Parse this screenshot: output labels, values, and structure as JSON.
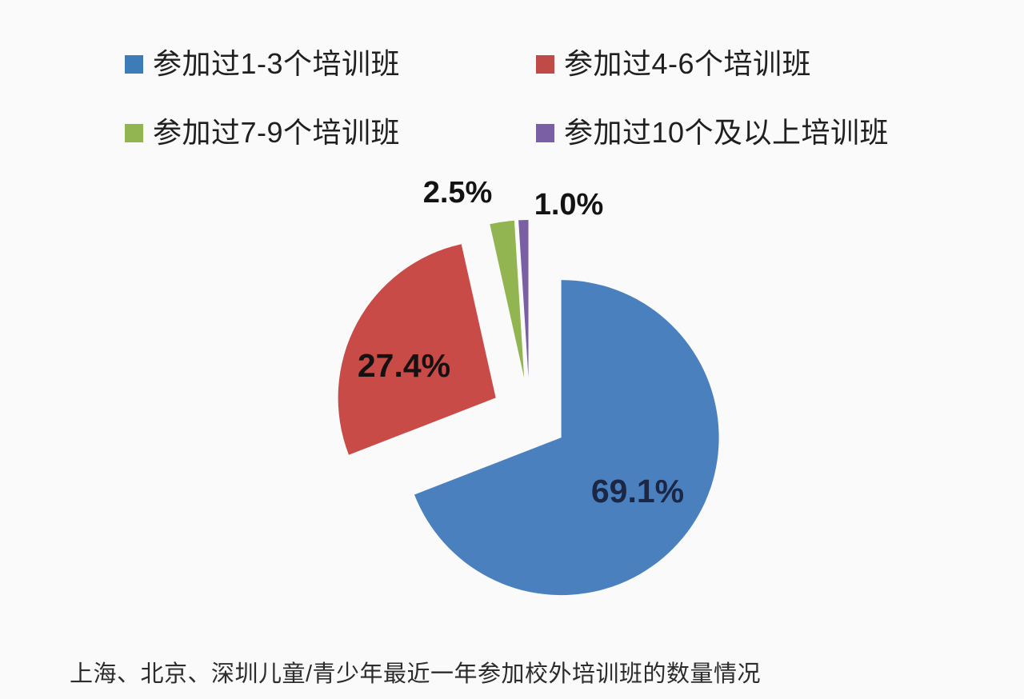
{
  "page": {
    "background_color": "#fafafb"
  },
  "legend": {
    "position": "top",
    "items": [
      {
        "label": "参加过1-3个培训班",
        "color": "#3e7cb8"
      },
      {
        "label": "参加过4-6个培训班",
        "color": "#c04a47"
      },
      {
        "label": "参加过7-9个培训班",
        "color": "#92b551"
      },
      {
        "label": "参加过10个及以上培训班",
        "color": "#7a5fa4"
      }
    ]
  },
  "caption": "上海、北京、深圳儿童/青少年最近一年参加校外培训班的数量情况",
  "chart_data": {
    "type": "pie",
    "title": "上海、北京、深圳儿童/青少年最近一年参加校外培训班的数量情况",
    "categories": [
      "参加过1-3个培训班",
      "参加过4-6个培训班",
      "参加过7-9个培训班",
      "参加过10个及以上培训班"
    ],
    "values": [
      69.1,
      27.4,
      2.5,
      1.0
    ],
    "labels": [
      "69.1%",
      "27.4%",
      "2.5%",
      "1.0%"
    ],
    "unit": "%",
    "colors": [
      "#4a80be",
      "#c94b48",
      "#92b551",
      "#7a5fa4"
    ],
    "slice_label_colors": [
      "#1b2744",
      "#171010",
      "#131313",
      "#131313"
    ],
    "label_placement": [
      "inside",
      "inside",
      "outside",
      "outside"
    ],
    "start_angle_deg": 0,
    "direction": "clockwise",
    "exploded": true,
    "legend_position": "top",
    "grid": false
  }
}
